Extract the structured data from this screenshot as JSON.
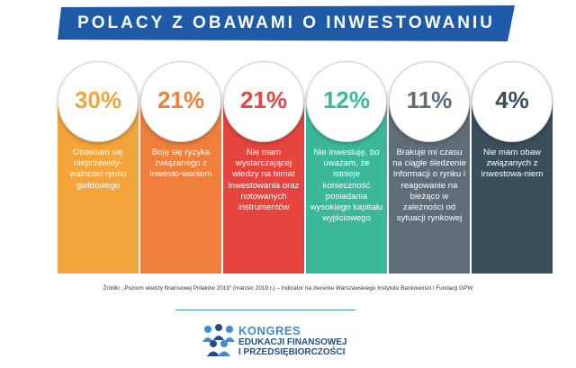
{
  "title": "POLACY Z OBAWAMI O INWESTOWANIU",
  "colors": {
    "banner": "#1f5aa8",
    "columns": [
      "#f3a43a",
      "#f07f3c",
      "#e6453f",
      "#3bb89a",
      "#5e6d78",
      "#3a4f5c"
    ]
  },
  "items": [
    {
      "percent": "30%",
      "text": "Obawiam się nieprzewidy-walności rynku giełdowego"
    },
    {
      "percent": "21%",
      "text": "Boję się ryzyka związanego z inwesto-waniem"
    },
    {
      "percent": "21%",
      "text": "Nie mam wystarczającej wiedzy na temat inwestowania oraz notowanych instrumentów"
    },
    {
      "percent": "12%",
      "text": "Nie inwestuję, bo uważam, że istnieje konieczność posiadania wysokiego kapitału wyjściowego"
    },
    {
      "percent": "11%",
      "text": "Brakuje mi czasu na ciągłe śledzenie informacji o rynku i reagowanie na bieżąco w zależności od sytuacji rynkowej"
    },
    {
      "percent": "4%",
      "text": "Nie mam obaw związanych z inwestowa-niem"
    }
  ],
  "source": "Źródło: „Poziom wiedzy finansowej Polaków 2019\" (marzec 2019 r.) – Indicator na zlecenie Warszawskiego Instytutu Bankowości i Fundacji GPW",
  "logo": {
    "line1": "KONGRES",
    "line2": "EDUKACJI FINANSOWEJ",
    "line3": "I PRZEDSIĘBIORCZOŚCI"
  }
}
